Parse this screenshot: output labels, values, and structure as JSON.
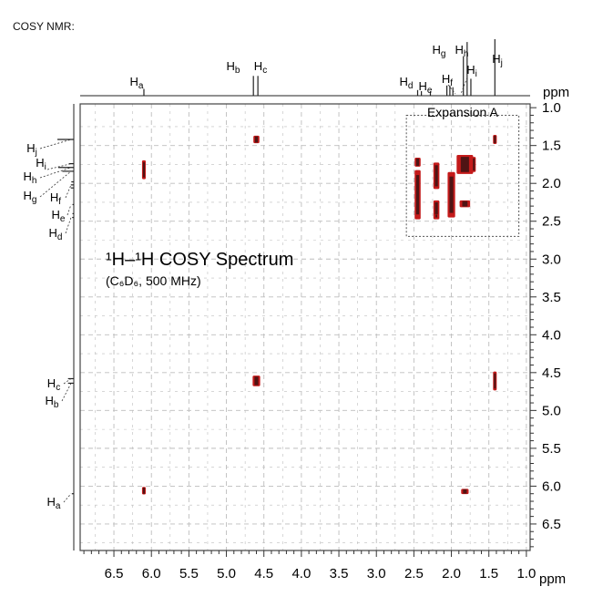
{
  "heading": "COSY NMR:",
  "chart_data": {
    "type": "heatmap",
    "title": "¹H–¹H COSY Spectrum",
    "subtitle": "(C₆D₆, 500 MHz)",
    "unit_label": "ppm",
    "x_ticks": [
      "6.5",
      "6.0",
      "5.5",
      "5.0",
      "4.5",
      "4.0",
      "3.5",
      "3.0",
      "2.5",
      "2.0",
      "1.5",
      "1.0"
    ],
    "y_ticks": [
      "1.0",
      "1.5",
      "2.0",
      "2.5",
      "3.0",
      "3.5",
      "4.0",
      "4.5",
      "5.0",
      "5.5",
      "6.0",
      "6.5"
    ],
    "xlim": [
      6.95,
      0.95
    ],
    "ylim": [
      0.95,
      6.85
    ],
    "grid": true,
    "expansion_label": "Expansion A",
    "expansion_box": {
      "x": [
        2.6,
        1.1
      ],
      "y": [
        1.1,
        2.7
      ]
    },
    "proton_labels": [
      {
        "id": "a",
        "text": "Ha",
        "shift": 6.1
      },
      {
        "id": "b",
        "text": "Hb",
        "shift": 4.64
      },
      {
        "id": "c",
        "text": "Hc",
        "shift": 4.58
      },
      {
        "id": "d",
        "text": "Hd",
        "shift": 2.45
      },
      {
        "id": "e",
        "text": "He",
        "shift": 2.28
      },
      {
        "id": "f",
        "text": "Hf",
        "shift": 2.02
      },
      {
        "id": "g",
        "text": "Hg",
        "shift": 1.84
      },
      {
        "id": "h",
        "text": "Hh",
        "shift": 1.79
      },
      {
        "id": "i",
        "text": "Hi",
        "shift": 1.74
      },
      {
        "id": "j",
        "text": "Hj",
        "shift": 1.42
      }
    ],
    "peaks_1d": [
      {
        "shift": 6.1,
        "height": 0.12
      },
      {
        "shift": 4.64,
        "height": 0.35
      },
      {
        "shift": 4.58,
        "height": 0.35
      },
      {
        "shift": 2.45,
        "height": 0.1
      },
      {
        "shift": 2.4,
        "height": 0.08
      },
      {
        "shift": 2.28,
        "height": 0.08
      },
      {
        "shift": 2.06,
        "height": 0.18
      },
      {
        "shift": 2.02,
        "height": 0.18
      },
      {
        "shift": 1.98,
        "height": 0.15
      },
      {
        "shift": 1.84,
        "height": 0.7
      },
      {
        "shift": 1.79,
        "height": 0.95
      },
      {
        "shift": 1.74,
        "height": 0.3
      },
      {
        "shift": 1.42,
        "height": 1.0
      }
    ],
    "cross_peaks": [
      {
        "x": 4.6,
        "y": 1.42,
        "w": 0.08,
        "h": 0.1
      },
      {
        "x": 6.1,
        "y": 1.82,
        "w": 0.05,
        "h": 0.25
      },
      {
        "x": 1.42,
        "y": 1.42,
        "w": 0.05,
        "h": 0.12
      },
      {
        "x": 2.45,
        "y": 1.72,
        "w": 0.08,
        "h": 0.12
      },
      {
        "x": 2.45,
        "y": 2.15,
        "w": 0.08,
        "h": 0.65
      },
      {
        "x": 2.2,
        "y": 1.9,
        "w": 0.08,
        "h": 0.35
      },
      {
        "x": 2.2,
        "y": 2.35,
        "w": 0.08,
        "h": 0.25
      },
      {
        "x": 2.0,
        "y": 2.15,
        "w": 0.1,
        "h": 0.6
      },
      {
        "x": 1.82,
        "y": 1.75,
        "w": 0.22,
        "h": 0.25
      },
      {
        "x": 1.82,
        "y": 2.27,
        "w": 0.14,
        "h": 0.09
      },
      {
        "x": 2.2,
        "y": 2.43,
        "w": 0.05,
        "h": 0.04
      },
      {
        "x": 1.7,
        "y": 1.75,
        "w": 0.05,
        "h": 0.2
      },
      {
        "x": 4.6,
        "y": 4.61,
        "w": 0.1,
        "h": 0.14
      },
      {
        "x": 1.42,
        "y": 4.61,
        "w": 0.03,
        "h": 0.25
      },
      {
        "x": 6.1,
        "y": 6.06,
        "w": 0.05,
        "h": 0.1
      },
      {
        "x": 1.82,
        "y": 6.07,
        "w": 0.1,
        "h": 0.07
      }
    ],
    "colors": {
      "peak": "#c41a1a",
      "peak_core": "#111111",
      "grid": "#bdbdbd",
      "frame": "#444444",
      "spectrum": "#222222"
    }
  }
}
